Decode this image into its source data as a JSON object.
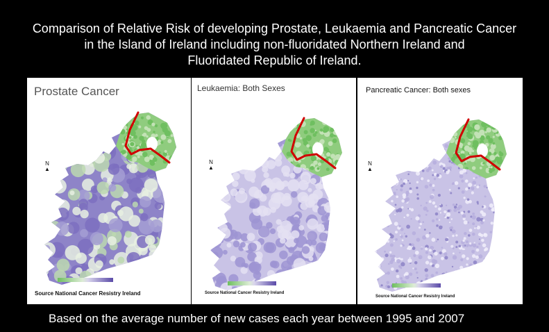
{
  "title": {
    "line1": "Comparison of Relative Risk of developing Prostate, Leukaemia and Pancreatic Cancer",
    "line2": "in the Island of Ireland including non-fluoridated Northern Ireland and",
    "line3": "Fluoridated Republic of Ireland."
  },
  "panels": [
    {
      "title": "Prostate Cancer",
      "source": "Source National Cancer Resistry Ireland",
      "pattern": "mixed"
    },
    {
      "title": "Leukaemia: Both Sexes",
      "source": "Source National Cancer Resistry Ireland",
      "pattern": "smooth"
    },
    {
      "title": "Pancreatic Cancer: Both sexes",
      "source": "Source National Cancer Resistry Ireland",
      "pattern": "speckled"
    }
  ],
  "footer": "Based on the average number of new cases each year between 1995 and 2007",
  "colors": {
    "low_risk": "#6fbf60",
    "high_risk": "#5a4aa8",
    "border_line": "#d00000"
  }
}
